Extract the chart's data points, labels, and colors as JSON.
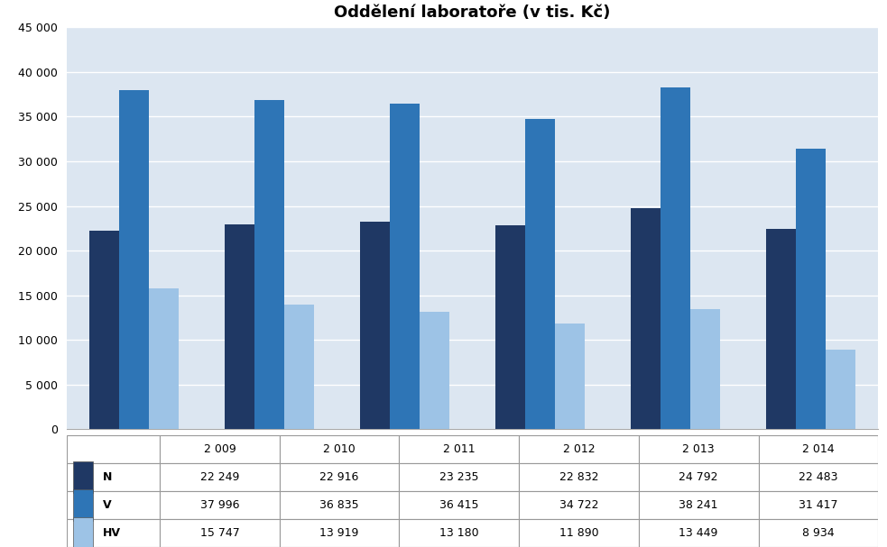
{
  "title": "Oddělení laboratoře (v tis. Kč)",
  "years": [
    "2 009",
    "2 010",
    "2 011",
    "2 012",
    "2 013",
    "2 014"
  ],
  "series": {
    "N": [
      22249,
      22916,
      23235,
      22832,
      24792,
      22483
    ],
    "V": [
      37996,
      36835,
      36415,
      34722,
      38241,
      31417
    ],
    "HV": [
      15747,
      13919,
      13180,
      11890,
      13449,
      8934
    ]
  },
  "colors": {
    "N": "#1F3864",
    "V": "#2E75B6",
    "HV": "#9DC3E6"
  },
  "ylim": [
    0,
    45000
  ],
  "yticks": [
    0,
    5000,
    10000,
    15000,
    20000,
    25000,
    30000,
    35000,
    40000,
    45000
  ],
  "background_color": "#DCE6F1",
  "outer_bg": "#FFFFFF",
  "series_keys": [
    "N",
    "V",
    "HV"
  ],
  "table_values": {
    "N": [
      "22 249",
      "22 916",
      "23 235",
      "22 832",
      "24 792",
      "22 483"
    ],
    "V": [
      "37 996",
      "36 835",
      "36 415",
      "34 722",
      "38 241",
      "31 417"
    ],
    "HV": [
      "15 747",
      "13 919",
      "13 180",
      "11 890",
      "13 449",
      "8 934"
    ]
  },
  "bar_width": 0.22,
  "title_fontsize": 13,
  "tick_fontsize": 9,
  "table_fontsize": 9
}
